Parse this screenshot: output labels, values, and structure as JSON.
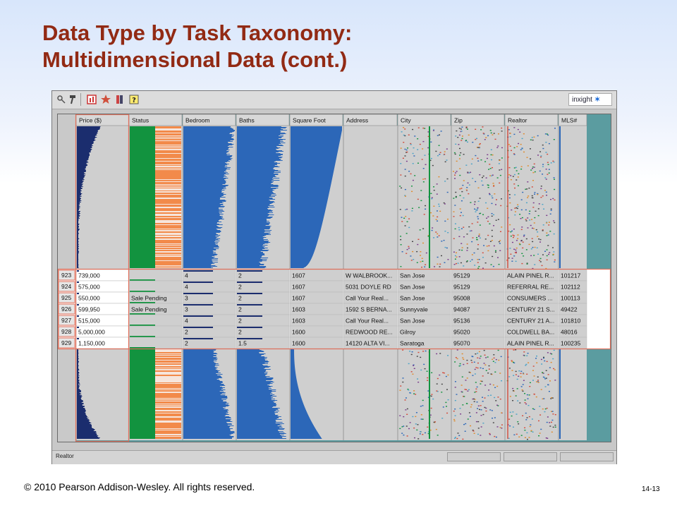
{
  "slide": {
    "title_line1": "Data Type by Task Taxonomy:",
    "title_line2": "Multidimensional Data (cont.)",
    "copyright": "© 2010 Pearson Addison-Wesley. All rights reserved.",
    "page_number": "14-13"
  },
  "app": {
    "logo_text": "inxight",
    "toolbar_icons": [
      "pin-icon",
      "hammer-icon",
      "chart-icon",
      "star-icon",
      "bookmark-icon",
      "help-icon"
    ],
    "status_text": "Realtor"
  },
  "table": {
    "columns": [
      "Price ($)",
      "Status",
      "Bedroom",
      "Baths",
      "Square Foot",
      "Address",
      "City",
      "Zip",
      "Realtor",
      "MLS#"
    ],
    "rows": [
      {
        "id": "923",
        "cells": [
          "739,000",
          "",
          "4",
          "2",
          "1607",
          "W WALBROOK...",
          "San Jose",
          "95129",
          "ALAIN PINEL R...",
          "101217"
        ]
      },
      {
        "id": "924",
        "cells": [
          "575,000",
          "",
          "4",
          "2",
          "1607",
          "5031 DOYLE RD",
          "San Jose",
          "95129",
          "REFERRAL RE...",
          "102112"
        ]
      },
      {
        "id": "925",
        "cells": [
          "550,000",
          "Sale Pending",
          "3",
          "2",
          "1607",
          "Call Your Real...",
          "San Jose",
          "95008",
          "CONSUMERS ...",
          "100113"
        ]
      },
      {
        "id": "926",
        "cells": [
          "599,950",
          "Sale Pending",
          "3",
          "2",
          "1603",
          "1592 S BERNA...",
          "Sunnyvale",
          "94087",
          "CENTURY 21 S...",
          "49422"
        ]
      },
      {
        "id": "927",
        "cells": [
          "515,000",
          "",
          "4",
          "2",
          "1603",
          "Call Your Real...",
          "San Jose",
          "95136",
          "CENTURY 21 A...",
          "101810"
        ]
      },
      {
        "id": "928",
        "cells": [
          "5,000,000",
          "",
          "2",
          "2",
          "1600",
          "REDWOOD RE...",
          "Gilroy",
          "95020",
          "COLDWELL BA...",
          "48016"
        ]
      },
      {
        "id": "929",
        "cells": [
          "1,150,000",
          "",
          "2",
          "1.5",
          "1600",
          "14120 ALTA VI...",
          "Saratoga",
          "95070",
          "ALAIN PINEL R...",
          "100235"
        ]
      }
    ]
  },
  "colors": {
    "title": "#922a14",
    "bar_blue": "#2c67b8",
    "status_green": "#12933f",
    "status_orange": "#f28a4a",
    "price_dark": "#1b2d6e",
    "highlight_red": "#e0705c",
    "cell_gray": "#cfcfcf"
  }
}
